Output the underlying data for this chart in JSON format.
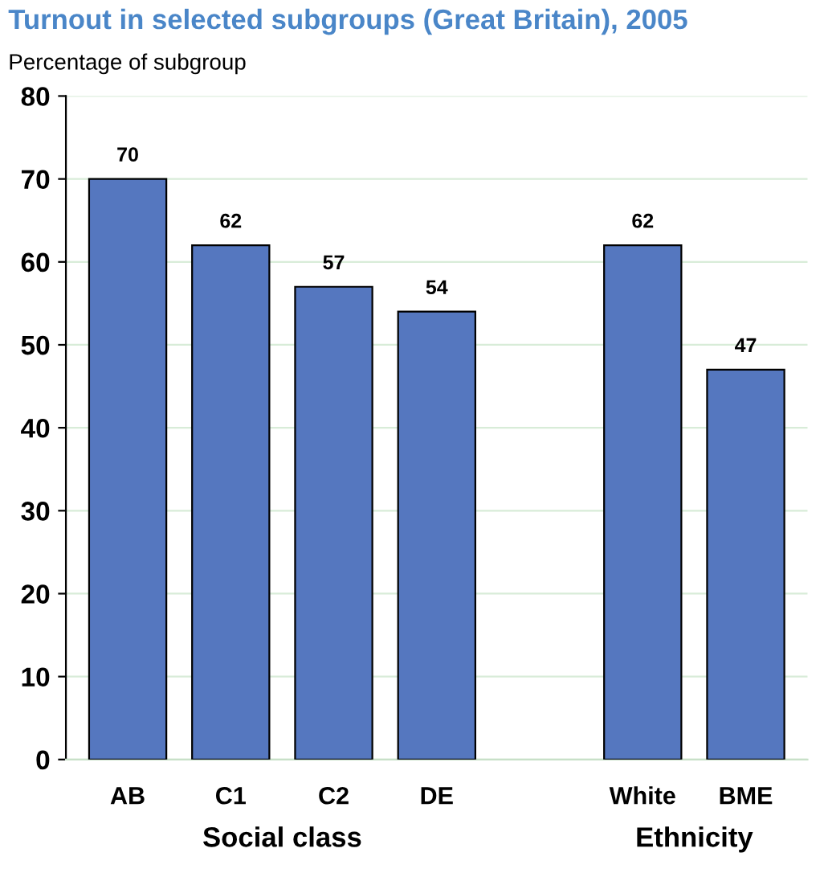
{
  "chart_data": {
    "type": "bar",
    "title": "Turnout in selected subgroups (Great Britain), 2005",
    "ylabel": "Percentage of subgroup",
    "categories": [
      "AB",
      "C1",
      "C2",
      "DE",
      null,
      "White",
      "BME"
    ],
    "values": [
      70,
      62,
      57,
      54,
      null,
      62,
      47
    ],
    "color": "#5577bf",
    "ylim": [
      0,
      80
    ],
    "yticks": [
      0,
      10,
      20,
      30,
      40,
      50,
      60,
      70,
      80
    ],
    "grid": "y",
    "data_labels": true,
    "annotations": [
      "Social class",
      "Ethnicity"
    ]
  }
}
